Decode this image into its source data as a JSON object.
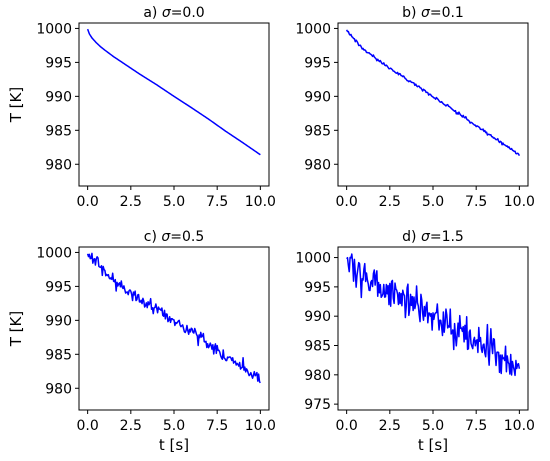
{
  "chart_data": [
    {
      "type": "line",
      "title": "a) σ=0.0",
      "title_prefix": "a) ",
      "title_symbol": "σ",
      "title_suffix": "=0.0",
      "xlabel": "",
      "ylabel": "T [K]",
      "xlim": [
        -0.5,
        10.5
      ],
      "ylim": [
        976.8,
        1000.8
      ],
      "xticks": [
        0.0,
        2.5,
        5.0,
        7.5,
        10.0
      ],
      "xtick_labels": [
        "0.0",
        "2.5",
        "5.0",
        "7.5",
        "10.0"
      ],
      "yticks": [
        980,
        985,
        990,
        995,
        1000
      ],
      "ytick_labels": [
        "980",
        "985",
        "990",
        "995",
        "1000"
      ],
      "noise_sigma": 0.0,
      "line_color": "#0000ff",
      "grid": false,
      "series": [
        {
          "x": [
            0.0,
            0.1,
            0.25,
            0.5,
            0.75,
            1.0,
            1.5,
            2.0,
            2.5,
            3.0,
            4.0,
            5.0,
            6.0,
            7.0,
            8.0,
            9.0,
            10.0
          ],
          "values": [
            999.9,
            999.2,
            998.6,
            997.9,
            997.3,
            996.8,
            995.85,
            995.0,
            994.15,
            993.3,
            991.7,
            990.0,
            988.35,
            986.65,
            984.85,
            983.15,
            981.4
          ]
        }
      ]
    },
    {
      "type": "line",
      "title": "b) σ=0.1",
      "title_prefix": "b) ",
      "title_symbol": "σ",
      "title_suffix": "=0.1",
      "xlabel": "",
      "ylabel": "",
      "xlim": [
        -0.5,
        10.5
      ],
      "ylim": [
        976.8,
        1000.8
      ],
      "xticks": [
        0.0,
        2.5,
        5.0,
        7.5,
        10.0
      ],
      "xtick_labels": [
        "0.0",
        "2.5",
        "5.0",
        "7.5",
        "10.0"
      ],
      "yticks": [
        980,
        985,
        990,
        995,
        1000
      ],
      "ytick_labels": [
        "980",
        "985",
        "990",
        "995",
        "1000"
      ],
      "noise_sigma": 0.1,
      "line_color": "#0000ff",
      "grid": false,
      "series": [
        {
          "x": [
            0.0,
            0.5,
            1.0,
            2.0,
            3.0,
            4.0,
            5.0,
            6.0,
            7.0,
            8.0,
            9.0,
            10.0
          ],
          "values": [
            999.8,
            998.2,
            996.9,
            995.0,
            993.3,
            991.7,
            990.0,
            988.3,
            986.6,
            984.8,
            983.1,
            981.4
          ]
        }
      ]
    },
    {
      "type": "line",
      "title": "c) σ=0.5",
      "title_prefix": "c) ",
      "title_symbol": "σ",
      "title_suffix": "=0.5",
      "xlabel": "t [s]",
      "ylabel": "T [K]",
      "xlim": [
        -0.5,
        10.5
      ],
      "ylim": [
        976.8,
        1000.8
      ],
      "xticks": [
        0.0,
        2.5,
        5.0,
        7.5,
        10.0
      ],
      "xtick_labels": [
        "0.0",
        "2.5",
        "5.0",
        "7.5",
        "10.0"
      ],
      "yticks": [
        980,
        985,
        990,
        995,
        1000
      ],
      "ytick_labels": [
        "980",
        "985",
        "990",
        "995",
        "1000"
      ],
      "noise_sigma": 0.5,
      "line_color": "#0000ff",
      "grid": false,
      "series": [
        {
          "x": [
            0.0,
            0.5,
            1.0,
            2.0,
            3.0,
            4.0,
            5.0,
            6.0,
            7.0,
            8.0,
            9.0,
            10.0
          ],
          "values": [
            999.8,
            998.3,
            996.9,
            995.0,
            993.3,
            991.6,
            990.0,
            988.3,
            986.6,
            984.8,
            983.0,
            981.3
          ]
        }
      ]
    },
    {
      "type": "line",
      "title": "d) σ=1.5",
      "title_prefix": "d) ",
      "title_symbol": "σ",
      "title_suffix": "=1.5",
      "xlabel": "t [s]",
      "ylabel": "",
      "xlim": [
        -0.5,
        10.5
      ],
      "ylim": [
        974.0,
        1001.8
      ],
      "xticks": [
        0.0,
        2.5,
        5.0,
        7.5,
        10.0
      ],
      "xtick_labels": [
        "0.0",
        "2.5",
        "5.0",
        "7.5",
        "10.0"
      ],
      "yticks": [
        975,
        980,
        985,
        990,
        995,
        1000
      ],
      "ytick_labels": [
        "975",
        "980",
        "985",
        "990",
        "995",
        "1000"
      ],
      "noise_sigma": 1.5,
      "line_color": "#0000ff",
      "grid": false,
      "series": [
        {
          "x": [
            0.0,
            0.5,
            1.0,
            2.0,
            3.0,
            4.0,
            5.0,
            6.0,
            7.0,
            8.0,
            9.0,
            10.0
          ],
          "values": [
            999.8,
            998.2,
            996.8,
            995.0,
            993.2,
            991.6,
            990.0,
            988.3,
            986.6,
            984.8,
            983.0,
            981.2
          ]
        }
      ]
    }
  ]
}
